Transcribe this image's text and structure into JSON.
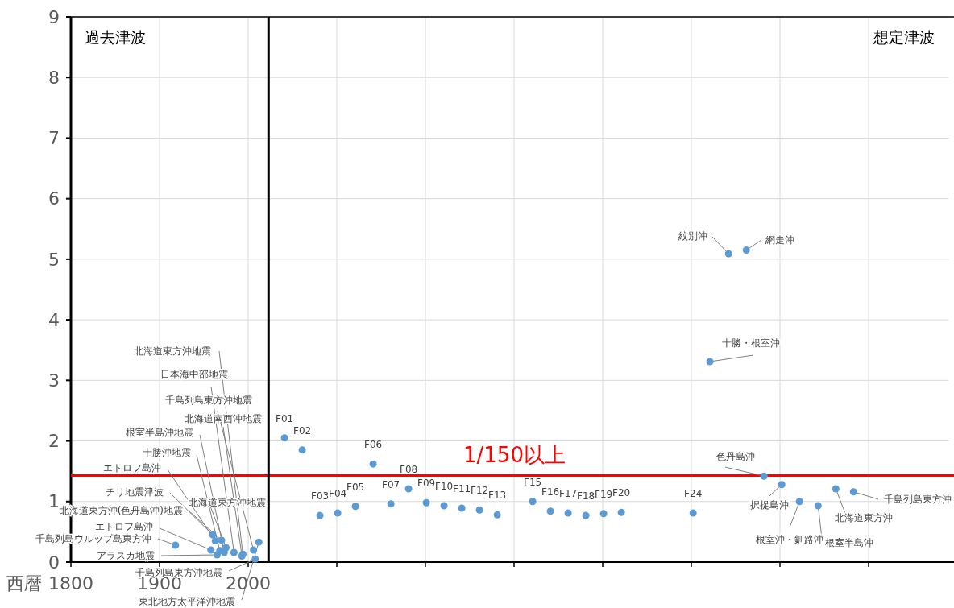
{
  "chart_data": {
    "type": "scatter",
    "xlabel": "西暦",
    "xlim": [
      1800,
      2790
    ],
    "ylim": [
      0,
      9
    ],
    "xticks": [
      1800,
      1900,
      2000,
      {
        "value": 2100,
        "label": null
      },
      {
        "value": 2200,
        "label": null
      },
      {
        "value": 2300,
        "label": null
      },
      {
        "value": 2400,
        "label": null
      },
      {
        "value": 2500,
        "label": null
      },
      {
        "value": 2600,
        "label": null
      },
      {
        "value": 2700,
        "label": null
      }
    ],
    "yticks": [
      0,
      1,
      2,
      3,
      4,
      5,
      6,
      7,
      8,
      9
    ],
    "grid": true,
    "marker": "circle",
    "series": [
      {
        "color": "#5b9bd5",
        "x": [
          1994,
          1984,
          2006,
          1993,
          1973,
          1968,
          1963,
          1960,
          1970,
          1975,
          1958,
          1918,
          1965,
          2008,
          2012,
          2041,
          2061,
          2081,
          2101,
          2121,
          2141,
          2161,
          2181,
          2201,
          2221,
          2241,
          2261,
          2281,
          2321,
          2341,
          2361,
          2381,
          2401,
          2421,
          2502,
          2542,
          2562,
          2521,
          2582,
          2602,
          2622,
          2643,
          2663,
          2683
        ],
        "values": [
          0.13,
          0.16,
          0.2,
          0.1,
          0.16,
          0.19,
          0.35,
          0.45,
          0.36,
          0.24,
          0.2,
          0.28,
          0.12,
          0.05,
          0.33,
          2.05,
          1.85,
          0.77,
          0.81,
          0.92,
          1.62,
          0.96,
          1.21,
          0.98,
          0.93,
          0.89,
          0.86,
          0.78,
          1.0,
          0.84,
          0.81,
          0.77,
          0.8,
          0.82,
          0.81,
          5.09,
          5.15,
          3.31,
          1.42,
          1.28,
          1.0,
          0.93,
          1.21,
          1.16
        ]
      }
    ],
    "ref_lines": [
      {
        "axis": "y",
        "value": 1.43,
        "label": "1/150以上",
        "color": "#ff0000"
      },
      {
        "axis": "x",
        "value": 2023,
        "label": null,
        "color": "#000000"
      }
    ],
    "annotations": [
      "過去津波",
      "想定津波",
      {
        "text": "北海道東方沖地震",
        "x": 1994,
        "y": 0.13
      },
      {
        "text": "日本海中部地震",
        "x": 1984,
        "y": 0.16
      },
      {
        "text": "千島列島東方沖地震",
        "x": 2006,
        "y": 0.2
      },
      {
        "text": "北海道南西沖地震",
        "x": 1993,
        "y": 0.1
      },
      {
        "text": "根室半島沖地震",
        "x": 1973,
        "y": 0.16
      },
      {
        "text": "十勝沖地震",
        "x": 1968,
        "y": 0.19
      },
      {
        "text": "エトロフ島沖",
        "x": 1963,
        "y": 0.35
      },
      {
        "text": "チリ地震津波",
        "x": 1960,
        "y": 0.45
      },
      {
        "text": "北海道東方沖(色丹島沖)地震",
        "x": 1970,
        "y": 0.36
      },
      {
        "text": "北海道東方沖地震",
        "x": 1975,
        "y": 0.24
      },
      {
        "text": "エトロフ島沖",
        "x": 1958,
        "y": 0.2
      },
      {
        "text": "千島列島ウルップ島東方沖",
        "x": 1918,
        "y": 0.28
      },
      {
        "text": "アラスカ地震",
        "x": 1965,
        "y": 0.12
      },
      {
        "text": "千島列島東方沖地震",
        "x": 2008,
        "y": 0.05
      },
      {
        "text": "東北地方太平洋沖地震",
        "x": 2012,
        "y": 0.33
      },
      {
        "text": "F01",
        "x": 2041,
        "y": 2.05
      },
      {
        "text": "F02",
        "x": 2061,
        "y": 1.85
      },
      {
        "text": "F03",
        "x": 2081,
        "y": 0.77
      },
      {
        "text": "F04",
        "x": 2101,
        "y": 0.81
      },
      {
        "text": "F05",
        "x": 2121,
        "y": 0.92
      },
      {
        "text": "F06",
        "x": 2141,
        "y": 1.62
      },
      {
        "text": "F07",
        "x": 2161,
        "y": 0.96
      },
      {
        "text": "F08",
        "x": 2181,
        "y": 1.21
      },
      {
        "text": "F09",
        "x": 2201,
        "y": 0.98
      },
      {
        "text": "F10",
        "x": 2221,
        "y": 0.93
      },
      {
        "text": "F11",
        "x": 2241,
        "y": 0.89
      },
      {
        "text": "F12",
        "x": 2261,
        "y": 0.86
      },
      {
        "text": "F13",
        "x": 2281,
        "y": 0.78
      },
      {
        "text": "F15",
        "x": 2321,
        "y": 1.0
      },
      {
        "text": "F16",
        "x": 2341,
        "y": 0.84
      },
      {
        "text": "F17",
        "x": 2361,
        "y": 0.81
      },
      {
        "text": "F18",
        "x": 2381,
        "y": 0.77
      },
      {
        "text": "F19",
        "x": 2401,
        "y": 0.8
      },
      {
        "text": "F20",
        "x": 2421,
        "y": 0.82
      },
      {
        "text": "F24",
        "x": 2502,
        "y": 0.81
      },
      {
        "text": "紋別沖",
        "x": 2542,
        "y": 5.09
      },
      {
        "text": "網走沖",
        "x": 2562,
        "y": 5.15
      },
      {
        "text": "十勝・根室沖",
        "x": 2521,
        "y": 3.31
      },
      {
        "text": "色丹島沖",
        "x": 2582,
        "y": 1.42
      },
      {
        "text": "択捉島沖",
        "x": 2602,
        "y": 1.28
      },
      {
        "text": "根室沖・釧路沖",
        "x": 2622,
        "y": 1.0
      },
      {
        "text": "根室半島沖",
        "x": 2643,
        "y": 0.93
      },
      {
        "text": "北海道東方沖",
        "x": 2663,
        "y": 1.21
      },
      {
        "text": "千島列島東方沖",
        "x": 2683,
        "y": 1.16
      }
    ]
  }
}
